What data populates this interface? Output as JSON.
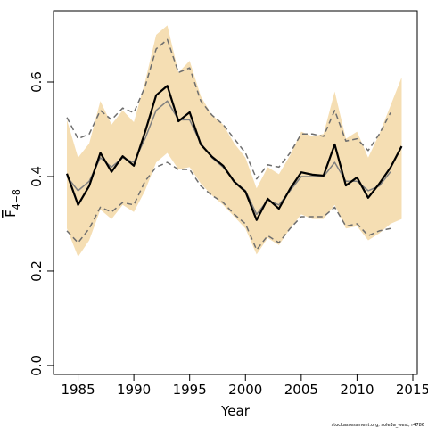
{
  "chart_data": {
    "type": "line",
    "x_label": "Year",
    "y_label": "F",
    "y_label_sub": "4−8",
    "footnote": "stockassessment.org, sole3a_west, r4786",
    "x": [
      1984,
      1985,
      1986,
      1987,
      1988,
      1989,
      1990,
      1991,
      1992,
      1993,
      1994,
      1995,
      1996,
      1997,
      1998,
      1999,
      2000,
      2001,
      2002,
      2003,
      2004,
      2005,
      2006,
      2007,
      2008,
      2009,
      2010,
      2011,
      2012,
      2013,
      2014
    ],
    "band": {
      "color": "#f5deb3",
      "upper": [
        0.52,
        0.44,
        0.47,
        0.56,
        0.51,
        0.54,
        0.515,
        0.6,
        0.7,
        0.72,
        0.62,
        0.645,
        0.57,
        0.53,
        0.51,
        0.47,
        0.44,
        0.375,
        0.42,
        0.405,
        0.445,
        0.495,
        0.485,
        0.49,
        0.58,
        0.48,
        0.495,
        0.44,
        0.49,
        0.55,
        0.61
      ],
      "lower": [
        0.29,
        0.23,
        0.265,
        0.33,
        0.31,
        0.34,
        0.325,
        0.37,
        0.43,
        0.45,
        0.415,
        0.42,
        0.385,
        0.36,
        0.34,
        0.315,
        0.29,
        0.235,
        0.27,
        0.255,
        0.29,
        0.32,
        0.31,
        0.31,
        0.34,
        0.29,
        0.295,
        0.265,
        0.28,
        0.3,
        0.31
      ]
    },
    "series": [
      {
        "color": "#6e6e6e",
        "style": "dashed",
        "width": 1.5,
        "values": [
          0.525,
          0.48,
          0.49,
          0.54,
          0.52,
          0.545,
          0.535,
          0.59,
          0.67,
          0.69,
          0.62,
          0.63,
          0.56,
          0.53,
          0.51,
          0.48,
          0.45,
          0.395,
          0.425,
          0.42,
          0.45,
          0.49,
          0.49,
          0.485,
          0.54,
          0.475,
          0.48,
          0.455,
          0.49,
          0.535,
          null
        ]
      },
      {
        "color": "#6e6e6e",
        "style": "dashed",
        "width": 1.5,
        "values": [
          0.285,
          0.26,
          0.29,
          0.335,
          0.325,
          0.345,
          0.34,
          0.39,
          0.42,
          0.43,
          0.415,
          0.415,
          0.38,
          0.36,
          0.345,
          0.32,
          0.3,
          0.245,
          0.275,
          0.26,
          0.29,
          0.315,
          0.315,
          0.315,
          0.335,
          0.295,
          0.3,
          0.275,
          0.285,
          0.29,
          null
        ]
      },
      {
        "color": "#808080",
        "style": "solid",
        "width": 1.5,
        "values": [
          0.4,
          0.37,
          0.39,
          0.44,
          0.42,
          0.44,
          0.43,
          0.48,
          0.54,
          0.56,
          0.52,
          0.52,
          0.47,
          0.44,
          0.42,
          0.39,
          0.37,
          0.32,
          0.35,
          0.34,
          0.37,
          0.4,
          0.4,
          0.4,
          0.43,
          0.39,
          0.39,
          0.37,
          0.38,
          0.41,
          null
        ]
      },
      {
        "color": "#000000",
        "style": "solid",
        "width": 2.2,
        "values": [
          0.406,
          0.34,
          0.38,
          0.45,
          0.41,
          0.443,
          0.423,
          0.494,
          0.572,
          0.592,
          0.517,
          0.536,
          0.468,
          0.442,
          0.423,
          0.389,
          0.368,
          0.308,
          0.353,
          0.332,
          0.374,
          0.409,
          0.404,
          0.402,
          0.468,
          0.381,
          0.398,
          0.355,
          0.385,
          0.419,
          0.464
        ]
      }
    ],
    "xlim": [
      1982.8,
      2015.4
    ],
    "ylim": [
      -0.019,
      0.751
    ],
    "xticks": [
      1985,
      1990,
      1995,
      2000,
      2005,
      2010,
      2015
    ],
    "yticks": [
      {
        "value": 0,
        "label": "0.0"
      },
      0.2,
      0.4,
      0.6
    ]
  }
}
